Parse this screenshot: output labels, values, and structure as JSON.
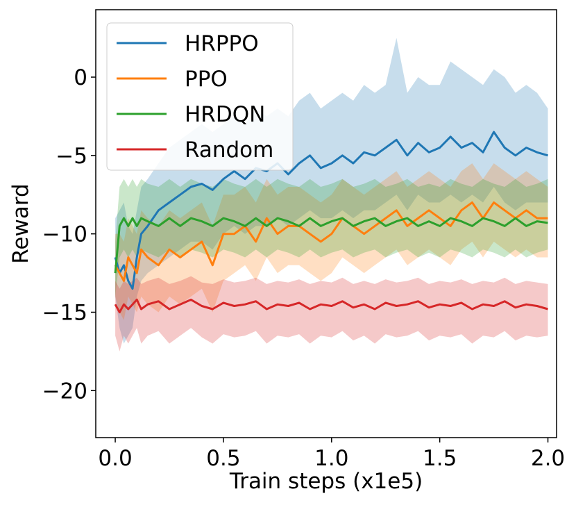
{
  "chart_data": {
    "type": "line",
    "title": "",
    "xlabel": "Train steps (x1e5)",
    "ylabel": "Reward",
    "xlim": [
      -0.09,
      2.04
    ],
    "ylim": [
      -23.0,
      4.3
    ],
    "xticks": [
      0.0,
      0.5,
      1.0,
      1.5,
      2.0
    ],
    "xtick_labels": [
      "0.0",
      "0.5",
      "1.0",
      "1.5",
      "2.0"
    ],
    "yticks": [
      0,
      -5,
      -10,
      -15,
      -20
    ],
    "ytick_labels": [
      "0",
      "−5",
      "−10",
      "−15",
      "−20"
    ],
    "grid": false,
    "legend_position": "top-left",
    "shaded_band": "mean with min/max range",
    "series": [
      {
        "name": "HRPPO",
        "color": "#1f77b4",
        "x": [
          0.0,
          0.02,
          0.04,
          0.06,
          0.08,
          0.1,
          0.12,
          0.15,
          0.2,
          0.25,
          0.3,
          0.35,
          0.4,
          0.45,
          0.5,
          0.55,
          0.6,
          0.65,
          0.7,
          0.75,
          0.8,
          0.85,
          0.9,
          0.95,
          1.0,
          1.05,
          1.1,
          1.15,
          1.2,
          1.25,
          1.3,
          1.35,
          1.4,
          1.45,
          1.5,
          1.55,
          1.6,
          1.65,
          1.7,
          1.75,
          1.8,
          1.85,
          1.9,
          1.95,
          2.0
        ],
        "mean": [
          -11.5,
          -12.5,
          -12.0,
          -13.0,
          -13.5,
          -11.5,
          -10.0,
          -9.5,
          -8.5,
          -8.0,
          -7.5,
          -7.0,
          -6.8,
          -7.2,
          -6.5,
          -6.0,
          -6.5,
          -5.8,
          -6.0,
          -5.5,
          -6.2,
          -5.5,
          -5.0,
          -5.8,
          -5.5,
          -5.0,
          -5.5,
          -4.8,
          -5.0,
          -4.5,
          -4.0,
          -5.0,
          -4.2,
          -4.8,
          -4.5,
          -3.8,
          -4.5,
          -4.2,
          -4.8,
          -3.5,
          -4.5,
          -5.0,
          -4.5,
          -4.8,
          -5.0
        ],
        "low": [
          -14.0,
          -16.0,
          -17.0,
          -16.5,
          -16.0,
          -14.0,
          -13.0,
          -12.5,
          -12.0,
          -11.5,
          -11.0,
          -10.5,
          -10.5,
          -11.0,
          -10.0,
          -9.5,
          -10.0,
          -9.5,
          -9.5,
          -9.0,
          -9.5,
          -9.0,
          -8.5,
          -9.0,
          -9.0,
          -8.5,
          -9.0,
          -8.5,
          -8.5,
          -8.0,
          -7.5,
          -8.5,
          -7.5,
          -8.0,
          -8.0,
          -7.5,
          -8.0,
          -7.5,
          -8.0,
          -7.0,
          -8.0,
          -8.5,
          -8.0,
          -8.0,
          -8.0
        ],
        "high": [
          -9.0,
          -8.5,
          -8.0,
          -9.5,
          -10.0,
          -8.5,
          -7.0,
          -6.5,
          -5.5,
          -4.5,
          -4.0,
          -3.5,
          -3.0,
          -3.5,
          -3.0,
          -2.5,
          -3.0,
          -2.0,
          -2.5,
          -2.0,
          -2.5,
          -1.5,
          -1.0,
          -2.0,
          -1.5,
          -1.0,
          -1.5,
          -0.5,
          -1.0,
          -0.5,
          2.5,
          -1.0,
          0.0,
          -0.5,
          -0.5,
          1.0,
          0.5,
          0.0,
          -0.5,
          0.5,
          0.0,
          -1.0,
          -0.5,
          -1.0,
          -2.0
        ]
      },
      {
        "name": "PPO",
        "color": "#ff7f0e",
        "x": [
          0.0,
          0.02,
          0.04,
          0.06,
          0.08,
          0.1,
          0.12,
          0.15,
          0.2,
          0.25,
          0.3,
          0.35,
          0.4,
          0.45,
          0.5,
          0.55,
          0.6,
          0.65,
          0.7,
          0.75,
          0.8,
          0.85,
          0.9,
          0.95,
          1.0,
          1.05,
          1.1,
          1.15,
          1.2,
          1.25,
          1.3,
          1.35,
          1.4,
          1.45,
          1.5,
          1.55,
          1.6,
          1.65,
          1.7,
          1.75,
          1.8,
          1.85,
          1.9,
          1.95,
          2.0
        ],
        "mean": [
          -12.0,
          -12.5,
          -13.0,
          -11.5,
          -12.0,
          -12.5,
          -11.0,
          -11.5,
          -12.0,
          -11.0,
          -11.5,
          -11.0,
          -10.5,
          -12.0,
          -10.0,
          -10.0,
          -9.5,
          -10.5,
          -9.0,
          -10.0,
          -9.5,
          -9.5,
          -10.0,
          -10.5,
          -10.0,
          -9.0,
          -9.5,
          -10.0,
          -9.5,
          -9.0,
          -8.5,
          -9.5,
          -9.0,
          -8.5,
          -9.0,
          -9.5,
          -8.5,
          -8.0,
          -9.0,
          -8.0,
          -8.5,
          -9.0,
          -8.5,
          -9.0,
          -9.0
        ],
        "low": [
          -14.0,
          -15.0,
          -15.5,
          -14.0,
          -14.5,
          -15.0,
          -14.0,
          -14.5,
          -15.0,
          -14.0,
          -14.5,
          -14.0,
          -13.5,
          -15.0,
          -13.0,
          -12.5,
          -12.0,
          -13.0,
          -11.5,
          -12.5,
          -12.0,
          -12.0,
          -12.5,
          -13.0,
          -12.5,
          -11.5,
          -12.0,
          -12.5,
          -12.0,
          -11.5,
          -11.0,
          -12.0,
          -11.5,
          -11.0,
          -11.5,
          -12.0,
          -11.0,
          -10.5,
          -11.5,
          -10.5,
          -11.0,
          -11.5,
          -11.0,
          -11.5,
          -11.5
        ],
        "high": [
          -10.0,
          -10.0,
          -10.5,
          -9.0,
          -9.5,
          -10.0,
          -8.5,
          -9.0,
          -9.5,
          -8.5,
          -9.0,
          -8.5,
          -8.0,
          -9.5,
          -7.5,
          -7.5,
          -7.0,
          -8.0,
          -6.5,
          -7.5,
          -7.0,
          -7.0,
          -7.5,
          -8.0,
          -7.5,
          -6.5,
          -7.0,
          -7.5,
          -7.0,
          -6.5,
          -6.0,
          -7.0,
          -6.5,
          -6.0,
          -6.5,
          -7.0,
          -6.0,
          -5.5,
          -6.5,
          -5.5,
          -6.0,
          -6.5,
          -6.0,
          -6.5,
          -7.0
        ]
      },
      {
        "name": "HRDQN",
        "color": "#2ca02c",
        "x": [
          0.0,
          0.02,
          0.04,
          0.06,
          0.08,
          0.1,
          0.12,
          0.15,
          0.2,
          0.25,
          0.3,
          0.35,
          0.4,
          0.45,
          0.5,
          0.55,
          0.6,
          0.65,
          0.7,
          0.75,
          0.8,
          0.85,
          0.9,
          0.95,
          1.0,
          1.05,
          1.1,
          1.15,
          1.2,
          1.25,
          1.3,
          1.35,
          1.4,
          1.45,
          1.5,
          1.55,
          1.6,
          1.65,
          1.7,
          1.75,
          1.8,
          1.85,
          1.9,
          1.95,
          2.0
        ],
        "mean": [
          -12.5,
          -9.5,
          -9.0,
          -9.5,
          -9.0,
          -9.5,
          -9.0,
          -9.2,
          -9.5,
          -9.0,
          -9.5,
          -9.0,
          -9.2,
          -9.5,
          -9.0,
          -9.2,
          -9.5,
          -9.0,
          -9.5,
          -9.0,
          -9.2,
          -9.5,
          -9.0,
          -9.5,
          -9.2,
          -9.0,
          -9.5,
          -9.2,
          -9.0,
          -9.5,
          -9.2,
          -9.0,
          -9.5,
          -9.2,
          -9.5,
          -9.0,
          -9.2,
          -9.5,
          -9.0,
          -9.2,
          -9.5,
          -9.0,
          -9.5,
          -9.2,
          -9.3
        ],
        "low": [
          -14.0,
          -11.5,
          -11.0,
          -11.5,
          -11.0,
          -11.5,
          -11.0,
          -11.2,
          -11.5,
          -11.0,
          -11.5,
          -11.0,
          -11.2,
          -11.5,
          -11.0,
          -11.2,
          -11.5,
          -11.0,
          -11.5,
          -11.0,
          -11.2,
          -11.5,
          -11.0,
          -11.5,
          -11.2,
          -11.0,
          -11.5,
          -11.2,
          -11.0,
          -11.5,
          -11.2,
          -11.0,
          -11.5,
          -11.2,
          -11.5,
          -11.0,
          -11.2,
          -11.5,
          -11.0,
          -11.2,
          -11.5,
          -11.0,
          -11.5,
          -11.2,
          -11.0
        ],
        "high": [
          -10.5,
          -7.0,
          -6.5,
          -7.0,
          -6.5,
          -7.0,
          -6.5,
          -6.8,
          -7.0,
          -6.5,
          -7.0,
          -6.5,
          -6.8,
          -7.0,
          -6.5,
          -6.8,
          -7.0,
          -6.5,
          -7.0,
          -6.5,
          -6.8,
          -7.0,
          -6.5,
          -7.0,
          -6.8,
          -6.5,
          -7.0,
          -6.8,
          -6.5,
          -7.0,
          -6.8,
          -6.5,
          -7.0,
          -6.8,
          -7.0,
          -6.5,
          -6.8,
          -7.0,
          -6.5,
          -6.8,
          -7.0,
          -6.5,
          -7.0,
          -6.8,
          -6.5
        ]
      },
      {
        "name": "Random",
        "color": "#d62728",
        "x": [
          0.0,
          0.02,
          0.04,
          0.06,
          0.08,
          0.1,
          0.12,
          0.15,
          0.2,
          0.25,
          0.3,
          0.35,
          0.4,
          0.45,
          0.5,
          0.55,
          0.6,
          0.65,
          0.7,
          0.75,
          0.8,
          0.85,
          0.9,
          0.95,
          1.0,
          1.05,
          1.1,
          1.15,
          1.2,
          1.25,
          1.3,
          1.35,
          1.4,
          1.45,
          1.5,
          1.55,
          1.6,
          1.65,
          1.7,
          1.75,
          1.8,
          1.85,
          1.9,
          1.95,
          2.0
        ],
        "mean": [
          -14.5,
          -15.0,
          -14.5,
          -14.8,
          -14.5,
          -14.2,
          -14.8,
          -14.5,
          -14.3,
          -14.8,
          -14.5,
          -14.2,
          -14.6,
          -14.8,
          -14.4,
          -14.6,
          -14.5,
          -14.3,
          -14.8,
          -14.5,
          -14.6,
          -14.4,
          -14.8,
          -14.5,
          -14.6,
          -14.3,
          -14.7,
          -14.5,
          -14.8,
          -14.4,
          -14.6,
          -14.5,
          -14.3,
          -14.7,
          -14.5,
          -14.6,
          -14.4,
          -14.8,
          -14.5,
          -14.6,
          -14.3,
          -14.7,
          -14.5,
          -14.6,
          -14.8
        ],
        "low": [
          -16.5,
          -17.5,
          -16.5,
          -17.0,
          -16.5,
          -16.0,
          -17.0,
          -16.5,
          -16.2,
          -17.0,
          -16.5,
          -16.0,
          -16.6,
          -17.0,
          -16.4,
          -16.6,
          -16.5,
          -16.2,
          -17.0,
          -16.5,
          -16.6,
          -16.4,
          -17.0,
          -16.5,
          -16.6,
          -16.2,
          -16.8,
          -16.5,
          -17.0,
          -16.4,
          -16.6,
          -16.5,
          -16.2,
          -16.8,
          -16.5,
          -16.6,
          -16.4,
          -17.0,
          -16.5,
          -16.6,
          -16.2,
          -16.8,
          -16.5,
          -16.6,
          -16.5
        ],
        "high": [
          -13.0,
          -13.5,
          -13.0,
          -13.2,
          -13.0,
          -12.8,
          -13.2,
          -13.0,
          -12.8,
          -13.2,
          -13.0,
          -12.7,
          -13.1,
          -13.2,
          -12.9,
          -13.1,
          -13.0,
          -12.8,
          -13.2,
          -13.0,
          -13.1,
          -12.9,
          -13.2,
          -13.0,
          -13.1,
          -12.8,
          -13.2,
          -13.0,
          -13.2,
          -12.9,
          -13.1,
          -13.0,
          -12.8,
          -13.2,
          -13.0,
          -13.1,
          -12.9,
          -13.2,
          -13.0,
          -13.1,
          -12.8,
          -13.2,
          -13.0,
          -13.1,
          -13.2
        ]
      }
    ]
  }
}
